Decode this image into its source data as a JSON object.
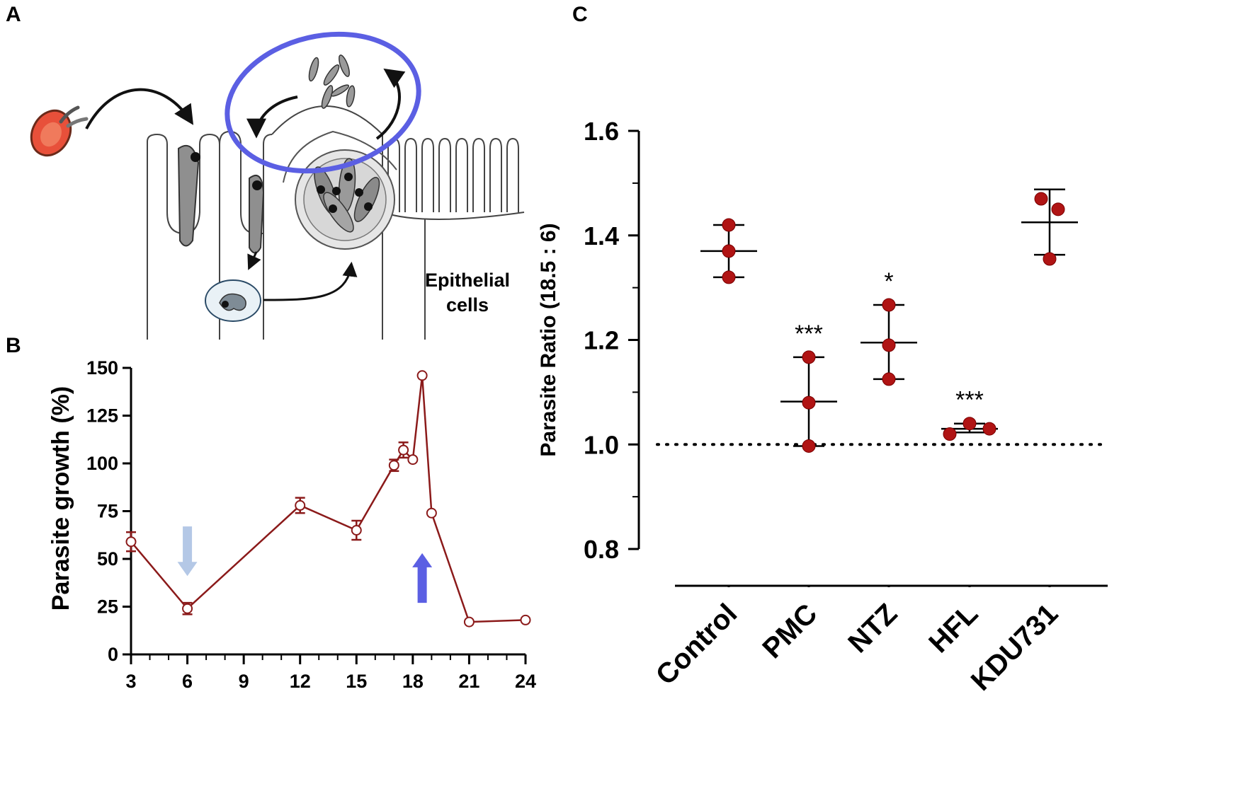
{
  "panels": {
    "a": {
      "label": "A"
    },
    "b": {
      "label": "B"
    },
    "c": {
      "label": "C"
    }
  },
  "schematic": {
    "cell_label_line1": "Epithelial",
    "cell_label_line2": "cells",
    "highlight_color": "#5b5fe3",
    "host_cell_color": "#e8503a"
  },
  "chart_data": [
    {
      "type": "line",
      "panel": "B",
      "title": "",
      "xlabel": "",
      "ylabel": "Parasite growth (%)",
      "xlim": [
        3,
        24
      ],
      "ylim": [
        0,
        150
      ],
      "x_ticks": [
        3,
        6,
        9,
        12,
        15,
        18,
        21,
        24
      ],
      "y_ticks": [
        0,
        25,
        50,
        75,
        100,
        125,
        150
      ],
      "series": [
        {
          "name": "Parasite growth",
          "color": "#8b1a1a",
          "x": [
            3,
            6,
            12,
            15,
            17,
            17.5,
            18,
            18.5,
            19,
            21,
            24
          ],
          "y": [
            59,
            24,
            78,
            65,
            99,
            107,
            102,
            146,
            74,
            17,
            18
          ],
          "error": [
            5,
            3,
            4,
            5,
            3,
            4,
            0,
            0,
            0,
            0,
            0
          ]
        }
      ],
      "annotations": [
        {
          "type": "arrow-down",
          "x": 6,
          "y_from": 67,
          "y_to": 41,
          "color": "#b4c8e6"
        },
        {
          "type": "arrow-up",
          "x": 18.5,
          "y_from": 27,
          "y_to": 53,
          "color": "#5b5fe3"
        }
      ]
    },
    {
      "type": "scatter",
      "panel": "C",
      "title": "",
      "xlabel": "",
      "ylabel": "Parasite Ratio (18.5 : 6)",
      "ylim": [
        0.8,
        1.6
      ],
      "y_ticks": [
        "0.8",
        "1.0",
        "1.2",
        "1.4",
        "1.6"
      ],
      "reference_line": 1.0,
      "point_color": "#b01414",
      "categories": [
        "Control",
        "PMC",
        "NTZ",
        "HFL",
        "KDU731"
      ],
      "groups": [
        {
          "name": "Control",
          "points": [
            1.42,
            1.37,
            1.32
          ],
          "mean": 1.37,
          "upper": 1.42,
          "lower": 1.32,
          "significance": ""
        },
        {
          "name": "PMC",
          "points": [
            1.167,
            1.08,
            0.997
          ],
          "mean": 1.082,
          "upper": 1.167,
          "lower": 0.997,
          "significance": "***"
        },
        {
          "name": "NTZ",
          "points": [
            1.267,
            1.19,
            1.125
          ],
          "mean": 1.195,
          "upper": 1.267,
          "lower": 1.125,
          "significance": "*"
        },
        {
          "name": "HFL",
          "points": [
            1.02,
            1.04,
            1.03
          ],
          "mean": 1.03,
          "upper": 1.04,
          "lower": 1.023,
          "significance": "***"
        },
        {
          "name": "KDU731",
          "points": [
            1.47,
            1.45,
            1.355
          ],
          "mean": 1.425,
          "upper": 1.488,
          "lower": 1.363,
          "significance": ""
        }
      ]
    }
  ]
}
